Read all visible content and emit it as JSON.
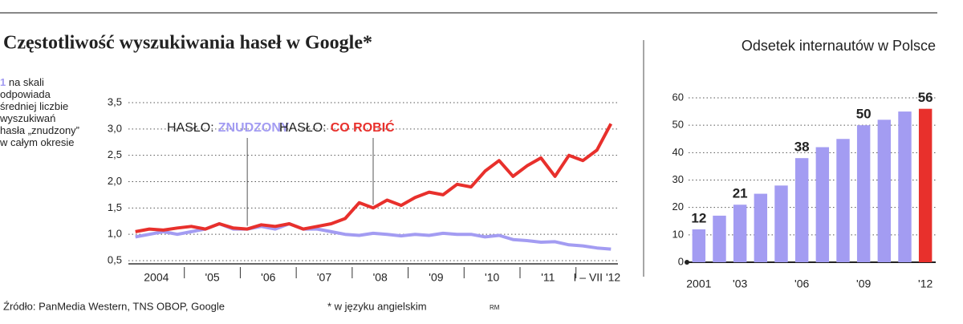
{
  "chart_data": [
    {
      "type": "line",
      "title": "Częstotliwość wyszukiwania haseł w Google*",
      "note_marker": "1",
      "note": "na skali odpowiada średniej liczbie wyszukiwań hasła „znudzony” w całym okresie",
      "annotation_prefix": "HASŁO:",
      "categories": [
        "2004",
        null,
        null,
        null,
        "'05",
        null,
        null,
        null,
        "'06",
        null,
        null,
        null,
        "'07",
        null,
        null,
        null,
        "'08",
        null,
        null,
        null,
        "'09",
        null,
        null,
        null,
        "'10",
        null,
        null,
        null,
        "'11",
        null,
        null,
        null,
        "I – VII '12",
        null,
        null
      ],
      "series": [
        {
          "name": "ZNUDZONY",
          "color": "#a39cf2",
          "values": [
            0.95,
            1.0,
            1.05,
            1.0,
            1.05,
            1.1,
            1.2,
            1.1,
            1.1,
            1.15,
            1.1,
            1.2,
            1.1,
            1.1,
            1.05,
            1.0,
            0.98,
            1.02,
            1.0,
            0.97,
            1.0,
            0.98,
            1.02,
            1.0,
            1.0,
            0.95,
            0.98,
            0.9,
            0.88,
            0.85,
            0.86,
            0.8,
            0.78,
            0.74,
            0.72
          ]
        },
        {
          "name": "CO ROBIĆ",
          "color": "#e8302c",
          "values": [
            1.05,
            1.1,
            1.08,
            1.12,
            1.15,
            1.1,
            1.2,
            1.12,
            1.1,
            1.18,
            1.15,
            1.2,
            1.1,
            1.15,
            1.2,
            1.3,
            1.6,
            1.5,
            1.65,
            1.55,
            1.7,
            1.8,
            1.75,
            1.95,
            1.9,
            2.2,
            2.4,
            2.1,
            2.3,
            2.45,
            2.1,
            2.5,
            2.4,
            2.6,
            3.1
          ]
        }
      ],
      "ylim": [
        0.5,
        3.5
      ],
      "yticks": [
        {
          "value": 0.5,
          "label": "0,5"
        },
        {
          "value": 1.0,
          "label": "1,0"
        },
        {
          "value": 1.5,
          "label": "1,5"
        },
        {
          "value": 2.0,
          "label": "2,0"
        },
        {
          "value": 2.5,
          "label": "2,5"
        },
        {
          "value": 3.0,
          "label": "3,0"
        },
        {
          "value": 3.5,
          "label": "3,5"
        }
      ],
      "grid": true
    },
    {
      "type": "bar",
      "title": "Odsetek internautów w Polsce",
      "categories": [
        "2001",
        null,
        "'03",
        null,
        null,
        "'06",
        null,
        null,
        "'09",
        null,
        null,
        "'12"
      ],
      "values": [
        12,
        17,
        21,
        25,
        28,
        38,
        42,
        45,
        50,
        52,
        55,
        56
      ],
      "value_labels": [
        "12",
        null,
        "21",
        null,
        null,
        "38",
        null,
        null,
        "50",
        null,
        null,
        "56"
      ],
      "colors": [
        "#a39cf2",
        "#a39cf2",
        "#a39cf2",
        "#a39cf2",
        "#a39cf2",
        "#a39cf2",
        "#a39cf2",
        "#a39cf2",
        "#a39cf2",
        "#a39cf2",
        "#a39cf2",
        "#e8302c"
      ],
      "ylim": [
        0,
        60
      ],
      "yticks": [
        0,
        10,
        20,
        30,
        40,
        50,
        60
      ],
      "grid": true
    }
  ],
  "source": "Źródło: PanMedia Western, TNS OBOP, Google",
  "footnote": "* w języku angielskim",
  "credit": "RM"
}
